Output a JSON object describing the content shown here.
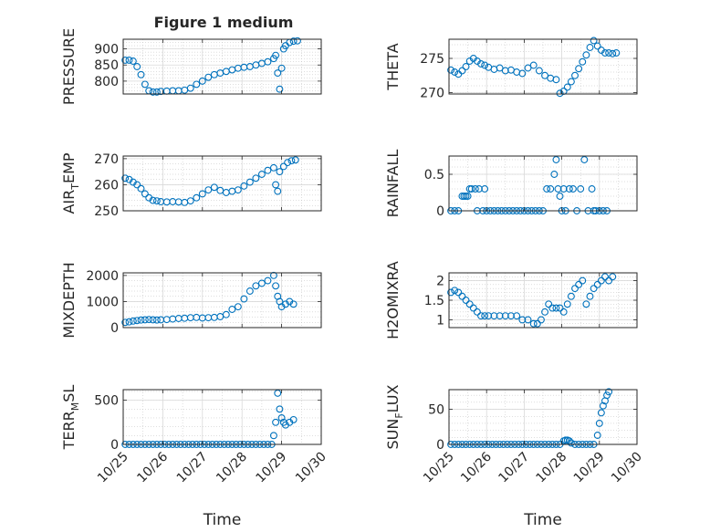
{
  "figure": {
    "title": "Figure 1 medium"
  },
  "chart_data": [
    {
      "type": "scatter",
      "ylabel": "PRESSURE",
      "xlabel": "",
      "xlim": [
        0,
        5
      ],
      "ylim": [
        760,
        930
      ],
      "yticks": [
        800,
        850,
        900
      ],
      "xticks": [
        0,
        1,
        2,
        3,
        4,
        5
      ],
      "xtick_labels": [],
      "grid": true,
      "color": "#0072BD",
      "series": [
        {
          "x": [
            0.05,
            0.15,
            0.25,
            0.35,
            0.45,
            0.55,
            0.65,
            0.75,
            0.85,
            0.95,
            1.1,
            1.25,
            1.4,
            1.55,
            1.7,
            1.85,
            2.0,
            2.15,
            2.3,
            2.45,
            2.6,
            2.75,
            2.9,
            3.05,
            3.2,
            3.35,
            3.5,
            3.65,
            3.8,
            3.85,
            3.9,
            3.95,
            4.0,
            4.05,
            4.1,
            4.2,
            4.3,
            4.4
          ],
          "y": [
            865,
            865,
            862,
            845,
            820,
            790,
            770,
            766,
            766,
            768,
            769,
            770,
            770,
            772,
            778,
            790,
            800,
            812,
            820,
            825,
            830,
            835,
            840,
            843,
            845,
            850,
            855,
            860,
            870,
            880,
            825,
            775,
            840,
            900,
            910,
            920,
            924,
            925
          ]
        }
      ]
    },
    {
      "type": "scatter",
      "ylabel": "THETA",
      "xlabel": "",
      "xlim": [
        0,
        5
      ],
      "ylim": [
        269.8,
        277.8
      ],
      "yticks": [
        270,
        275
      ],
      "xticks": [
        0,
        1,
        2,
        3,
        4,
        5
      ],
      "xtick_labels": [],
      "grid": true,
      "color": "#0072BD",
      "series": [
        {
          "x": [
            0.05,
            0.15,
            0.25,
            0.35,
            0.45,
            0.55,
            0.65,
            0.75,
            0.85,
            0.95,
            1.05,
            1.2,
            1.35,
            1.5,
            1.65,
            1.8,
            1.95,
            2.1,
            2.25,
            2.4,
            2.55,
            2.7,
            2.85,
            2.95,
            3.05,
            3.15,
            3.25,
            3.35,
            3.45,
            3.55,
            3.65,
            3.75,
            3.85,
            3.95,
            4.05,
            4.15,
            4.25,
            4.35,
            4.45
          ],
          "y": [
            273.3,
            273.0,
            272.7,
            273.2,
            273.8,
            274.6,
            275.0,
            274.6,
            274.2,
            274.0,
            273.7,
            273.4,
            273.6,
            273.2,
            273.3,
            273.0,
            272.8,
            273.6,
            274.0,
            273.2,
            272.5,
            272.1,
            271.9,
            269.9,
            270.2,
            270.8,
            271.6,
            272.5,
            273.5,
            274.5,
            275.5,
            276.6,
            277.6,
            276.8,
            276.2,
            275.8,
            275.8,
            275.7,
            275.8
          ]
        }
      ]
    },
    {
      "type": "scatter",
      "ylabel": "AIR_TEMP",
      "xlabel": "",
      "xlim": [
        0,
        5
      ],
      "ylim": [
        250,
        271
      ],
      "yticks": [
        250,
        260,
        270
      ],
      "xticks": [
        0,
        1,
        2,
        3,
        4,
        5
      ],
      "xtick_labels": [],
      "grid": true,
      "color": "#0072BD",
      "series": [
        {
          "x": [
            0.05,
            0.15,
            0.25,
            0.35,
            0.45,
            0.55,
            0.65,
            0.75,
            0.85,
            0.95,
            1.1,
            1.25,
            1.4,
            1.55,
            1.7,
            1.85,
            2.0,
            2.15,
            2.3,
            2.45,
            2.6,
            2.75,
            2.9,
            3.05,
            3.2,
            3.35,
            3.5,
            3.65,
            3.8,
            3.85,
            3.9,
            3.95,
            4.05,
            4.15,
            4.25,
            4.35
          ],
          "y": [
            262.5,
            262,
            261,
            260,
            258.5,
            256.5,
            255,
            254,
            253.8,
            253.5,
            253.4,
            253.5,
            253.4,
            253.2,
            253.8,
            255,
            256.5,
            258,
            259,
            257.8,
            257,
            257.5,
            258,
            259.5,
            261,
            262.5,
            264,
            265.5,
            266.5,
            260,
            257.5,
            265,
            267,
            268.5,
            269.2,
            269.5
          ]
        }
      ]
    },
    {
      "type": "scatter",
      "ylabel": "RAINFALL",
      "xlabel": "",
      "xlim": [
        0,
        5
      ],
      "ylim": [
        0,
        0.75
      ],
      "yticks": [
        0,
        0.5
      ],
      "xticks": [
        0,
        1,
        2,
        3,
        4,
        5
      ],
      "xtick_labels": [],
      "grid": true,
      "color": "#0072BD",
      "series": [
        {
          "x": [
            0.05,
            0.15,
            0.25,
            0.35,
            0.4,
            0.45,
            0.5,
            0.55,
            0.6,
            0.7,
            0.75,
            0.8,
            0.9,
            0.95,
            1.0,
            1.1,
            1.2,
            1.3,
            1.4,
            1.5,
            1.6,
            1.7,
            1.8,
            1.9,
            2.0,
            2.1,
            2.2,
            2.3,
            2.4,
            2.5,
            2.6,
            2.7,
            2.8,
            2.85,
            2.9,
            2.95,
            3.0,
            3.05,
            3.1,
            3.2,
            3.3,
            3.4,
            3.5,
            3.6,
            3.7,
            3.8,
            3.85,
            3.9,
            4.0,
            4.1,
            4.2
          ],
          "y": [
            0,
            0,
            0,
            0.2,
            0.2,
            0.2,
            0.2,
            0.3,
            0.3,
            0.3,
            0,
            0.3,
            0,
            0.3,
            0,
            0,
            0,
            0,
            0,
            0,
            0,
            0,
            0,
            0,
            0,
            0,
            0,
            0,
            0,
            0,
            0.3,
            0.3,
            0.5,
            0.7,
            0.3,
            0.2,
            0,
            0.3,
            0,
            0.3,
            0.3,
            0,
            0.3,
            0.7,
            0,
            0.3,
            0,
            0,
            0,
            0,
            0
          ]
        }
      ]
    },
    {
      "type": "scatter",
      "ylabel": "MIXDEPTH",
      "xlabel": "",
      "xlim": [
        0,
        5
      ],
      "ylim": [
        0,
        2100
      ],
      "yticks": [
        0,
        1000,
        2000
      ],
      "xticks": [
        0,
        1,
        2,
        3,
        4,
        5
      ],
      "xtick_labels": [],
      "grid": true,
      "color": "#0072BD",
      "series": [
        {
          "x": [
            0.05,
            0.15,
            0.25,
            0.35,
            0.45,
            0.55,
            0.65,
            0.75,
            0.85,
            0.95,
            1.1,
            1.25,
            1.4,
            1.55,
            1.7,
            1.85,
            2.0,
            2.15,
            2.3,
            2.45,
            2.6,
            2.75,
            2.9,
            3.05,
            3.2,
            3.35,
            3.5,
            3.65,
            3.8,
            3.85,
            3.9,
            3.95,
            4.0,
            4.1,
            4.2,
            4.3
          ],
          "y": [
            200,
            220,
            250,
            270,
            290,
            300,
            310,
            300,
            290,
            300,
            310,
            330,
            350,
            360,
            380,
            390,
            370,
            380,
            390,
            420,
            500,
            700,
            800,
            1100,
            1400,
            1600,
            1700,
            1800,
            2000,
            1600,
            1200,
            1000,
            800,
            900,
            1000,
            900
          ]
        }
      ]
    },
    {
      "type": "scatter",
      "ylabel": "H2OMIXRA",
      "xlabel": "",
      "xlim": [
        0,
        5
      ],
      "ylim": [
        0.8,
        2.2
      ],
      "yticks": [
        1,
        1.5,
        2
      ],
      "xticks": [
        0,
        1,
        2,
        3,
        4,
        5
      ],
      "xtick_labels": [],
      "grid": true,
      "color": "#0072BD",
      "series": [
        {
          "x": [
            0.05,
            0.15,
            0.25,
            0.35,
            0.45,
            0.55,
            0.65,
            0.75,
            0.85,
            0.95,
            1.05,
            1.2,
            1.35,
            1.5,
            1.65,
            1.8,
            1.95,
            2.1,
            2.25,
            2.35,
            2.45,
            2.55,
            2.65,
            2.75,
            2.85,
            2.95,
            3.05,
            3.15,
            3.25,
            3.35,
            3.45,
            3.55,
            3.65,
            3.75,
            3.85,
            3.95,
            4.05,
            4.15,
            4.25,
            4.35
          ],
          "y": [
            1.7,
            1.75,
            1.7,
            1.6,
            1.5,
            1.4,
            1.3,
            1.2,
            1.1,
            1.1,
            1.1,
            1.1,
            1.1,
            1.1,
            1.1,
            1.1,
            1.0,
            1.0,
            0.9,
            0.9,
            1.0,
            1.2,
            1.4,
            1.3,
            1.3,
            1.3,
            1.2,
            1.4,
            1.6,
            1.8,
            1.9,
            2.0,
            1.4,
            1.6,
            1.8,
            1.9,
            2.0,
            2.1,
            2.0,
            2.1
          ]
        }
      ]
    },
    {
      "type": "scatter",
      "ylabel": "TERR_MSL",
      "xlabel": "Time",
      "xlim": [
        0,
        5
      ],
      "ylim": [
        0,
        620
      ],
      "yticks": [
        0,
        500
      ],
      "xticks": [
        0,
        1,
        2,
        3,
        4,
        5
      ],
      "xtick_labels": [
        "10/25",
        "10/26",
        "10/27",
        "10/28",
        "10/29",
        "10/30"
      ],
      "grid": true,
      "color": "#0072BD",
      "series": [
        {
          "x": [
            0.05,
            0.15,
            0.25,
            0.35,
            0.45,
            0.55,
            0.65,
            0.75,
            0.85,
            0.95,
            1.05,
            1.15,
            1.25,
            1.35,
            1.45,
            1.55,
            1.65,
            1.75,
            1.85,
            1.95,
            2.05,
            2.15,
            2.25,
            2.35,
            2.45,
            2.55,
            2.65,
            2.75,
            2.85,
            2.95,
            3.05,
            3.15,
            3.25,
            3.35,
            3.45,
            3.55,
            3.65,
            3.75,
            3.8,
            3.85,
            3.9,
            3.95,
            4.0,
            4.05,
            4.1,
            4.2,
            4.3
          ],
          "y": [
            0,
            0,
            0,
            0,
            0,
            0,
            0,
            0,
            0,
            0,
            0,
            0,
            0,
            0,
            0,
            0,
            0,
            0,
            0,
            0,
            0,
            0,
            0,
            0,
            0,
            0,
            0,
            0,
            0,
            0,
            0,
            0,
            0,
            0,
            0,
            0,
            0,
            0,
            100,
            250,
            580,
            400,
            300,
            250,
            220,
            250,
            280
          ]
        }
      ]
    },
    {
      "type": "scatter",
      "ylabel": "SUN_FLUX",
      "xlabel": "Time",
      "xlim": [
        0,
        5
      ],
      "ylim": [
        0,
        78
      ],
      "yticks": [
        0,
        50
      ],
      "xticks": [
        0,
        1,
        2,
        3,
        4,
        5
      ],
      "xtick_labels": [
        "10/25",
        "10/26",
        "10/27",
        "10/28",
        "10/29",
        "10/30"
      ],
      "grid": true,
      "color": "#0072BD",
      "series": [
        {
          "x": [
            0.05,
            0.15,
            0.25,
            0.35,
            0.45,
            0.55,
            0.65,
            0.75,
            0.85,
            0.95,
            1.05,
            1.15,
            1.25,
            1.35,
            1.45,
            1.55,
            1.65,
            1.75,
            1.85,
            1.95,
            2.05,
            2.15,
            2.25,
            2.35,
            2.45,
            2.55,
            2.65,
            2.75,
            2.85,
            2.95,
            3.05,
            3.1,
            3.15,
            3.2,
            3.25,
            3.35,
            3.45,
            3.55,
            3.65,
            3.75,
            3.85,
            3.95,
            4.0,
            4.05,
            4.1,
            4.15,
            4.2,
            4.25
          ],
          "y": [
            0,
            0,
            0,
            0,
            0,
            0,
            0,
            0,
            0,
            0,
            0,
            0,
            0,
            0,
            0,
            0,
            0,
            0,
            0,
            0,
            0,
            0,
            0,
            0,
            0,
            0,
            0,
            0,
            0,
            0,
            5,
            6,
            6,
            5,
            2,
            0,
            0,
            0,
            0,
            0,
            0,
            13,
            30,
            45,
            55,
            62,
            70,
            75
          ]
        }
      ]
    }
  ]
}
